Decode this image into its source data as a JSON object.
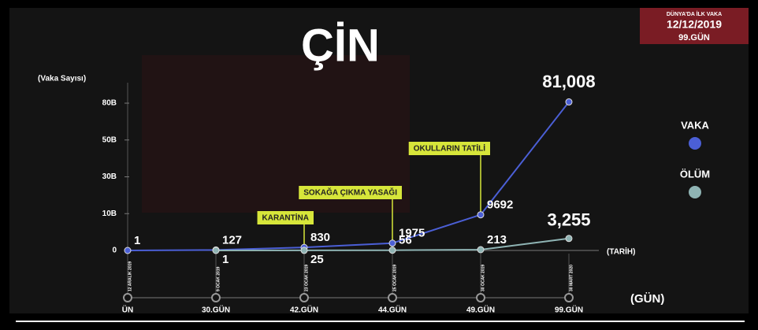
{
  "chart_data": {
    "type": "line",
    "title": "ÇİN",
    "info_box": {
      "line1": "DÜNYA'DA İLK VAKA",
      "line2": "12/12/2019",
      "line3": "99.GÜN"
    },
    "y_label": "(Vaka Sayısı)",
    "x_label_date": "(TARİH)",
    "x_label_day": "(GÜN)",
    "categories": [
      "ÜN",
      "30.GÜN",
      "42.GÜN",
      "44.GÜN",
      "49.GÜN",
      "99.GÜN"
    ],
    "dates": [
      "12 ARALIK 2019",
      "9 OCAK 2019",
      "23 OCAK 2019",
      "25 OCAK 2019",
      "30 OCAK 2019",
      "30 MART 2020"
    ],
    "series": [
      {
        "name": "VAKA",
        "color": "#4b5fd6",
        "values": [
          1,
          127,
          830,
          1975,
          9692,
          81008
        ],
        "value_labels": [
          "1",
          "127",
          "830",
          "1975",
          "9692",
          "81,008"
        ]
      },
      {
        "name": "ÖLÜM",
        "color": "#8fb4b4",
        "values": [
          null,
          1,
          25,
          56,
          213,
          3255
        ],
        "value_labels": [
          null,
          "1",
          "25",
          "56",
          "213",
          "3,255"
        ]
      }
    ],
    "ylim": [
      0,
      80000
    ],
    "yticks": [
      0,
      {
        "value": 10000,
        "label": "10B"
      },
      {
        "value": 30000,
        "label": "30B"
      },
      {
        "value": 50000,
        "label": "50B"
      },
      {
        "value": 80000,
        "label": "80B"
      }
    ],
    "y_scale": "piecewise",
    "legend": "right",
    "annotations": [
      {
        "text": "KARANTİNA",
        "at": "42.GÜN"
      },
      {
        "text": "SOKAĞA ÇIKMA YASAĞI",
        "at": "44.GÜN"
      },
      {
        "text": "OKULLARIN TATİLİ",
        "at": "49.GÜN"
      }
    ]
  }
}
